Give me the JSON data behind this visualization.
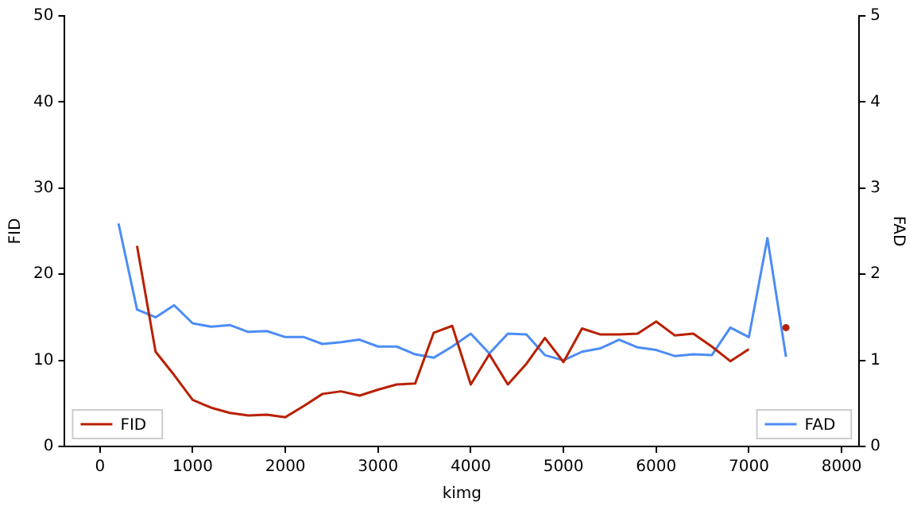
{
  "chart_data": {
    "type": "line",
    "xlabel": "kimg",
    "ylabel": "FID",
    "y2label": "FAD",
    "x": [
      200,
      400,
      600,
      800,
      1000,
      1200,
      1400,
      1600,
      1800,
      2000,
      2200,
      2400,
      2600,
      2800,
      3000,
      3200,
      3400,
      3600,
      3800,
      4000,
      4200,
      4400,
      4600,
      4800,
      5000,
      5200,
      5400,
      5600,
      5800,
      6000,
      6200,
      6400,
      6600,
      6800,
      7000,
      7200,
      7400
    ],
    "series": [
      {
        "name": "FID",
        "color": "#b82000",
        "values": [
          null,
          23.3,
          11.0,
          8.3,
          5.4,
          4.5,
          3.9,
          3.6,
          3.7,
          3.4,
          4.7,
          6.1,
          6.4,
          5.9,
          6.6,
          7.2,
          7.3,
          13.2,
          14.0,
          7.2,
          10.7,
          7.2,
          9.6,
          12.6,
          9.8,
          13.7,
          13.0,
          13.0,
          13.1,
          14.5,
          12.9,
          13.1,
          11.6,
          9.9,
          11.3,
          null,
          13.8
        ]
      },
      {
        "name": "FAD",
        "color": "#4c8cf5",
        "axis": "y2",
        "values": [
          2.59,
          1.59,
          1.5,
          1.64,
          1.43,
          1.39,
          1.41,
          1.33,
          1.34,
          1.27,
          1.27,
          1.19,
          1.21,
          1.24,
          1.16,
          1.16,
          1.07,
          1.03,
          1.16,
          1.31,
          1.08,
          1.31,
          1.3,
          1.06,
          1.0,
          1.1,
          1.14,
          1.24,
          1.15,
          1.12,
          1.05,
          1.07,
          1.06,
          1.38,
          1.27,
          2.42,
          1.04
        ]
      }
    ],
    "xlim": [
      -380,
      8190
    ],
    "xticks": [
      0,
      1000,
      2000,
      3000,
      4000,
      5000,
      6000,
      7000,
      8000
    ],
    "ylim": [
      0,
      50
    ],
    "yticks": [
      0,
      10,
      20,
      30,
      40,
      50
    ],
    "y2lim": [
      0,
      5
    ],
    "y2ticks": [
      0,
      1,
      2,
      3,
      4,
      5
    ],
    "grid": false,
    "legend": "bottom",
    "marker": "none",
    "line_style": "solid"
  }
}
